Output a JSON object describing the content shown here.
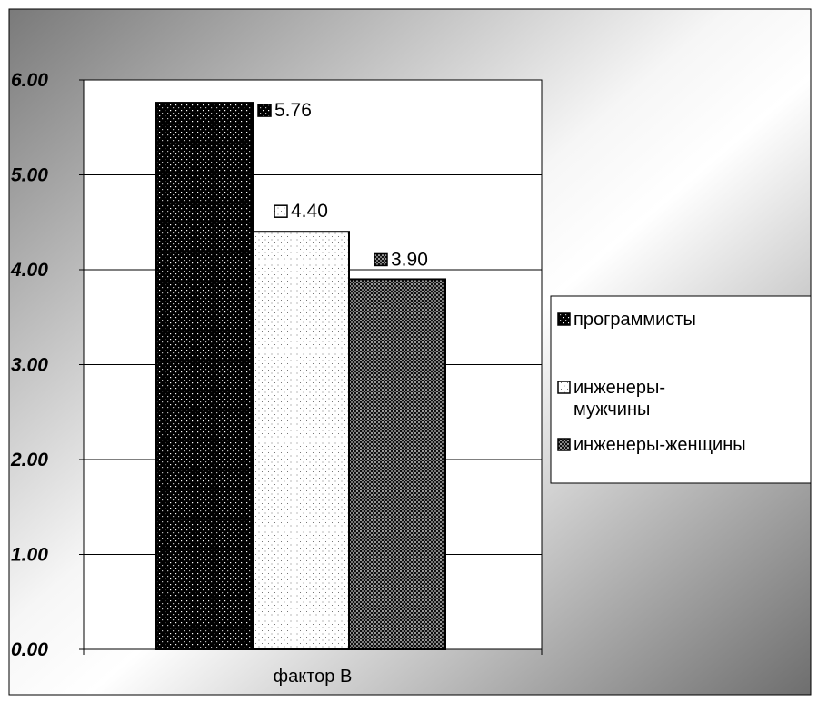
{
  "chart_data": {
    "type": "bar",
    "categories": [
      "фактор В"
    ],
    "series": [
      {
        "name": "программисты",
        "values": [
          5.76
        ],
        "label": "5.76",
        "pattern": "dense-dark"
      },
      {
        "name": "инженеры-мужчины",
        "label": "4.40",
        "values": [
          4.4
        ],
        "pattern": "light-dots"
      },
      {
        "name": "инженеры-женщины",
        "label": "3.90",
        "values": [
          3.9
        ],
        "pattern": "checker-dark"
      }
    ],
    "legend_lines": [
      [
        "программисты"
      ],
      [
        "инженеры-",
        "мужчины"
      ],
      [
        "инженеры-женщины"
      ]
    ],
    "yticks": [
      "0.00",
      "1.00",
      "2.00",
      "3.00",
      "4.00",
      "5.00",
      "6.00"
    ],
    "ylim": [
      0,
      6
    ],
    "grid": true,
    "legend_position": "right",
    "background": "gray-gradient"
  }
}
